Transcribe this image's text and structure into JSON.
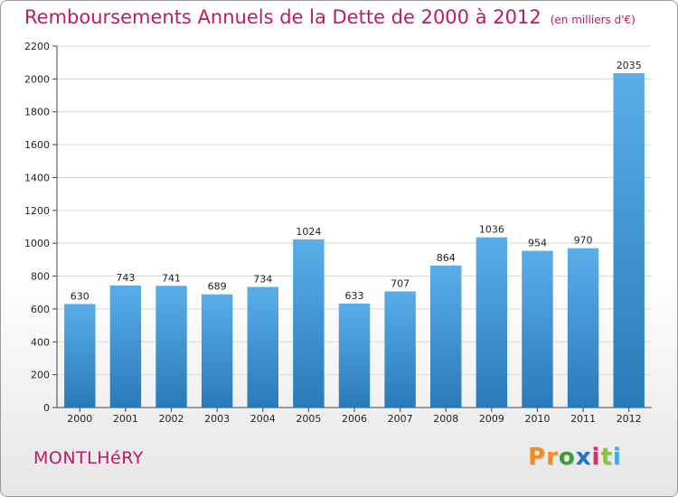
{
  "header": {
    "title": "Remboursements Annuels de la Dette de 2000 à 2012",
    "unit": "(en milliers d'€)"
  },
  "footer": {
    "commune": "MONTLHéRY",
    "logo": "Proxiti",
    "logo_colors": [
      "#f28c1e",
      "#f28c1e",
      "#3a9e3a",
      "#1f78c1",
      "#d62e6b",
      "#8ac43f",
      "#3aaee6"
    ]
  },
  "chart_data": {
    "type": "bar",
    "categories": [
      "2000",
      "2001",
      "2002",
      "2003",
      "2004",
      "2005",
      "2006",
      "2007",
      "2008",
      "2009",
      "2010",
      "2011",
      "2012"
    ],
    "values": [
      630,
      743,
      741,
      689,
      734,
      1024,
      633,
      707,
      864,
      1036,
      954,
      970,
      2035
    ],
    "ylim": [
      0,
      2200
    ],
    "yticks": [
      0,
      200,
      400,
      600,
      800,
      1000,
      1200,
      1400,
      1600,
      1800,
      2000,
      2200
    ],
    "grid": true,
    "bar_color_top": "#5aaee8",
    "bar_color_bottom": "#2a7ab8",
    "title": "Remboursements Annuels de la Dette de 2000 à 2012",
    "xlabel": "",
    "ylabel": ""
  }
}
